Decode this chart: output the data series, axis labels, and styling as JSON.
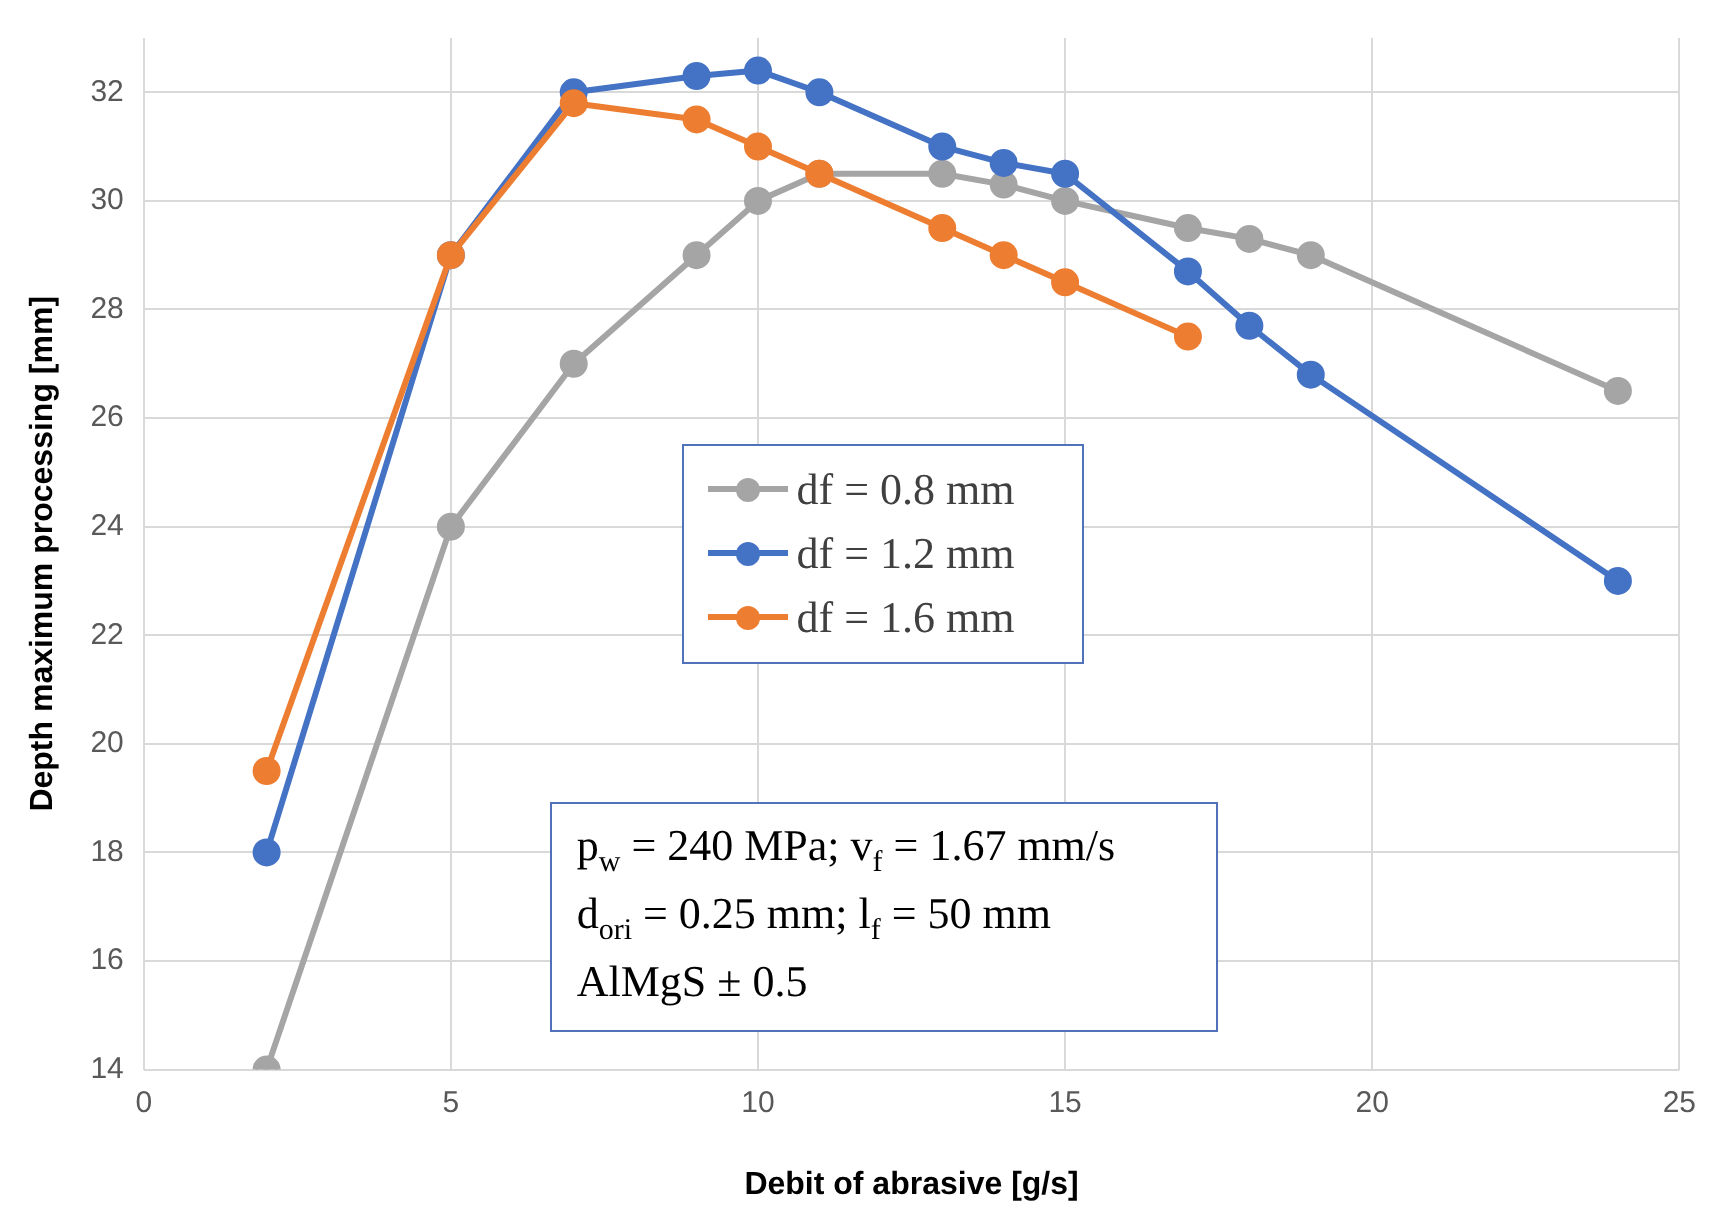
{
  "chart_data": {
    "type": "line",
    "xlabel": "Debit of abrasive [g/s]",
    "ylabel": "Depth maximum processing [mm]",
    "xlim": [
      0,
      25
    ],
    "xticks": [
      0,
      5,
      10,
      15,
      20,
      25
    ],
    "ylim": [
      14,
      33
    ],
    "yticks": [
      14,
      16,
      18,
      20,
      22,
      24,
      26,
      28,
      30,
      32
    ],
    "grid": true,
    "legend": "center",
    "marker": "circle",
    "line_style": "solid",
    "annotations": [
      "p$_{w}$ = 240 MPa; v$_{f}$ = 1.67 mm/s",
      "d$_{ori}$ = 0.25 mm; l$_{f}$ = 50 mm",
      "AlMgS ± 0.5"
    ],
    "series": [
      {
        "name": "df = 0.8 mm",
        "color": "#a5a5a5",
        "x": [
          2,
          5,
          7,
          9,
          10,
          11,
          13,
          14,
          15,
          17,
          18,
          19,
          24
        ],
        "values": [
          14,
          24,
          27,
          29,
          30,
          30.5,
          30.5,
          30.3,
          30,
          29.5,
          29.3,
          29,
          26.5
        ]
      },
      {
        "name": "df = 1.2 mm",
        "color": "#4472c4",
        "x": [
          2,
          5,
          7,
          9,
          10,
          11,
          13,
          14,
          15,
          17,
          18,
          19,
          24
        ],
        "values": [
          18,
          29,
          32,
          32.3,
          32.4,
          32,
          31,
          30.7,
          30.5,
          28.7,
          27.7,
          26.8,
          23
        ]
      },
      {
        "name": "df = 1.6 mm",
        "color": "#ed7d31",
        "x": [
          2,
          5,
          7,
          9,
          10,
          11,
          13,
          14,
          15,
          17
        ],
        "values": [
          19.5,
          29,
          31.8,
          31.5,
          31,
          30.5,
          29.5,
          29,
          28.5,
          27.5
        ]
      }
    ]
  }
}
